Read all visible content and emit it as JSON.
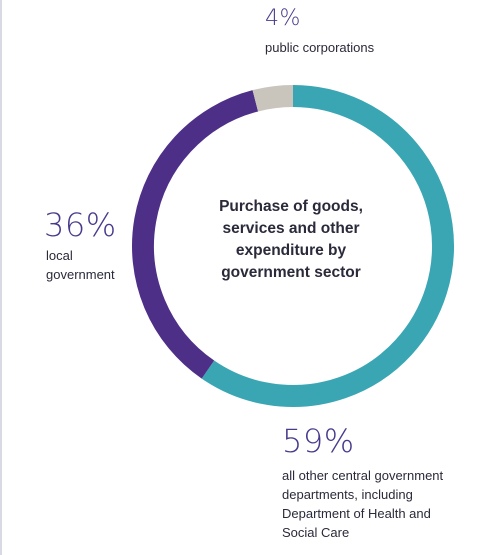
{
  "colors": {
    "background": "#ffffff",
    "text_dark": "#2a2a3a",
    "percent_text": "#4a3a8c"
  },
  "chart_data": {
    "type": "pie",
    "title": "Purchase of goods, services and other expenditure by government sector",
    "title_lines": [
      "Purchase of goods,",
      "services and other",
      "expenditure by",
      "government sector"
    ],
    "style": "donut",
    "slices": [
      {
        "label": "public corporations",
        "value": 4,
        "percent_label": "4%",
        "description": "public corporations",
        "color": "#c9c4bc"
      },
      {
        "label": "local government",
        "value": 36,
        "percent_label": "36%",
        "description": "local\ngovernment",
        "color": "#4e2f87"
      },
      {
        "label": "all other central government departments, including Department of Health and Social Care",
        "value": 59,
        "percent_label": "59%",
        "description": "all other central government\ndepartments, including\nDepartment of Health and\nSocial Care",
        "color": "#3aa6b4"
      }
    ]
  }
}
